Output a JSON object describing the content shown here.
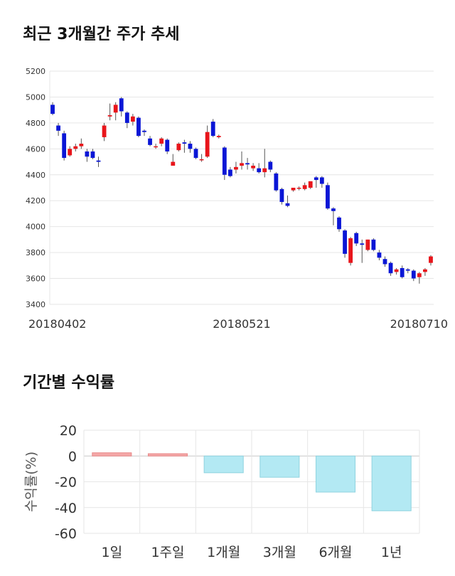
{
  "headings": {
    "price_trend": "최근 3개월간 주가 추세",
    "period_returns": "기간별 수익률"
  },
  "colors": {
    "up": "#e8151b",
    "down": "#0a16d6",
    "positive_bar": "#f4a7a7",
    "negative_bar": "#b3e9f3"
  },
  "chart_data": [
    {
      "type": "candlestick",
      "title": "최근 3개월간 주가 추세",
      "ylim": [
        3400,
        5200
      ],
      "yticks": [
        3400,
        3600,
        3800,
        4000,
        4200,
        4400,
        4600,
        4800,
        5000,
        5200
      ],
      "xtick_labels": [
        "20180402",
        "20180521",
        "20180710"
      ],
      "grid": true,
      "candles": [
        [
          4940,
          4870,
          4960,
          4860
        ],
        [
          4780,
          4740,
          4800,
          4700
        ],
        [
          4720,
          4530,
          4740,
          4510
        ],
        [
          4550,
          4600,
          4620,
          4540
        ],
        [
          4600,
          4620,
          4640,
          4580
        ],
        [
          4620,
          4640,
          4680,
          4600
        ],
        [
          4580,
          4540,
          4600,
          4500
        ],
        [
          4580,
          4530,
          4600,
          4520
        ],
        [
          4510,
          4500,
          4540,
          4460
        ],
        [
          4690,
          4780,
          4800,
          4660
        ],
        [
          4850,
          4860,
          4950,
          4820
        ],
        [
          4880,
          4940,
          4960,
          4820
        ],
        [
          4990,
          4890,
          5000,
          4850
        ],
        [
          4880,
          4800,
          4890,
          4760
        ],
        [
          4810,
          4850,
          4870,
          4780
        ],
        [
          4840,
          4700,
          4850,
          4690
        ],
        [
          4740,
          4730,
          4750,
          4700
        ],
        [
          4680,
          4630,
          4700,
          4620
        ],
        [
          4620,
          4620,
          4640,
          4600
        ],
        [
          4640,
          4680,
          4690,
          4620
        ],
        [
          4670,
          4580,
          4680,
          4560
        ],
        [
          4470,
          4500,
          4560,
          4480
        ],
        [
          4590,
          4640,
          4650,
          4580
        ],
        [
          4650,
          4640,
          4670,
          4570
        ],
        [
          4640,
          4600,
          4660,
          4570
        ],
        [
          4600,
          4530,
          4610,
          4520
        ],
        [
          4520,
          4520,
          4560,
          4500
        ],
        [
          4540,
          4730,
          4780,
          4530
        ],
        [
          4810,
          4700,
          4830,
          4690
        ],
        [
          4690,
          4700,
          4710,
          4680
        ],
        [
          4610,
          4400,
          4620,
          4360
        ],
        [
          4440,
          4390,
          4460,
          4380
        ],
        [
          4440,
          4460,
          4500,
          4410
        ],
        [
          4470,
          4490,
          4580,
          4440
        ],
        [
          4490,
          4480,
          4530,
          4440
        ],
        [
          4450,
          4470,
          4490,
          4430
        ],
        [
          4450,
          4420,
          4490,
          4410
        ],
        [
          4420,
          4450,
          4600,
          4380
        ],
        [
          4500,
          4440,
          4510,
          4420
        ],
        [
          4410,
          4280,
          4420,
          4270
        ],
        [
          4290,
          4190,
          4300,
          4170
        ],
        [
          4180,
          4160,
          4240,
          4150
        ],
        [
          4280,
          4300,
          4300,
          4270
        ],
        [
          4300,
          4300,
          4310,
          4280
        ],
        [
          4290,
          4320,
          4340,
          4280
        ],
        [
          4300,
          4350,
          4350,
          4290
        ],
        [
          4380,
          4360,
          4390,
          4300
        ],
        [
          4380,
          4330,
          4390,
          4300
        ],
        [
          4320,
          4140,
          4340,
          4130
        ],
        [
          4140,
          4120,
          4150,
          4010
        ],
        [
          4070,
          3980,
          4080,
          3960
        ],
        [
          3970,
          3790,
          3980,
          3760
        ],
        [
          3720,
          3910,
          3920,
          3700
        ],
        [
          3950,
          3870,
          3960,
          3850
        ],
        [
          3870,
          3860,
          3900,
          3720
        ],
        [
          3820,
          3900,
          3900,
          3810
        ],
        [
          3900,
          3820,
          3910,
          3810
        ],
        [
          3800,
          3760,
          3820,
          3740
        ],
        [
          3750,
          3710,
          3770,
          3690
        ],
        [
          3720,
          3640,
          3730,
          3620
        ],
        [
          3650,
          3670,
          3680,
          3630
        ],
        [
          3680,
          3610,
          3700,
          3600
        ],
        [
          3670,
          3660,
          3680,
          3640
        ],
        [
          3660,
          3600,
          3670,
          3580
        ],
        [
          3610,
          3640,
          3650,
          3560
        ],
        [
          3650,
          3670,
          3680,
          3620
        ],
        [
          3720,
          3770,
          3780,
          3700
        ]
      ]
    },
    {
      "type": "bar",
      "title": "기간별 수익률",
      "ylabel": "수익률(%)",
      "ylim": [
        -60,
        20
      ],
      "yticks": [
        20,
        0,
        -20,
        -40,
        -60
      ],
      "categories": [
        "1일",
        "1주일",
        "1개월",
        "3개월",
        "6개월",
        "1년"
      ],
      "values": [
        2.5,
        1.8,
        -13.0,
        -16.5,
        -28.0,
        -42.5
      ],
      "grid": true
    }
  ]
}
